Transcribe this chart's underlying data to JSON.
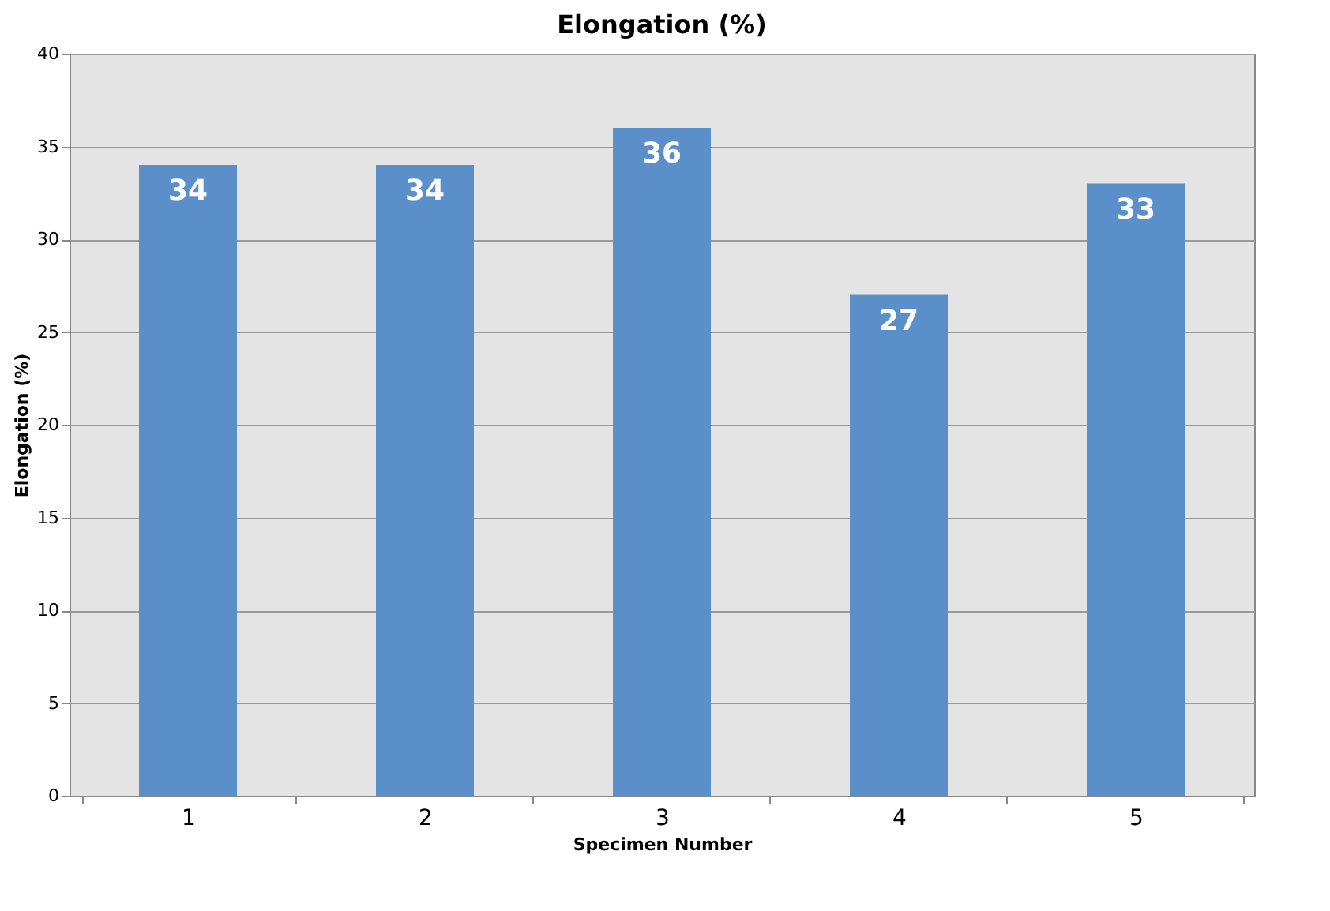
{
  "chart_data": {
    "type": "bar",
    "title": "Elongation (%)",
    "xlabel": "Specimen Number",
    "ylabel": "Elongation (%)",
    "categories": [
      "1",
      "2",
      "3",
      "4",
      "5"
    ],
    "values": [
      34,
      34,
      36,
      27,
      33
    ],
    "color": "#5b8fc9",
    "ylim": [
      0,
      40
    ],
    "yticks": [
      0,
      5,
      10,
      15,
      20,
      25,
      30,
      35,
      40
    ],
    "grid": "y",
    "data_labels": true
  }
}
